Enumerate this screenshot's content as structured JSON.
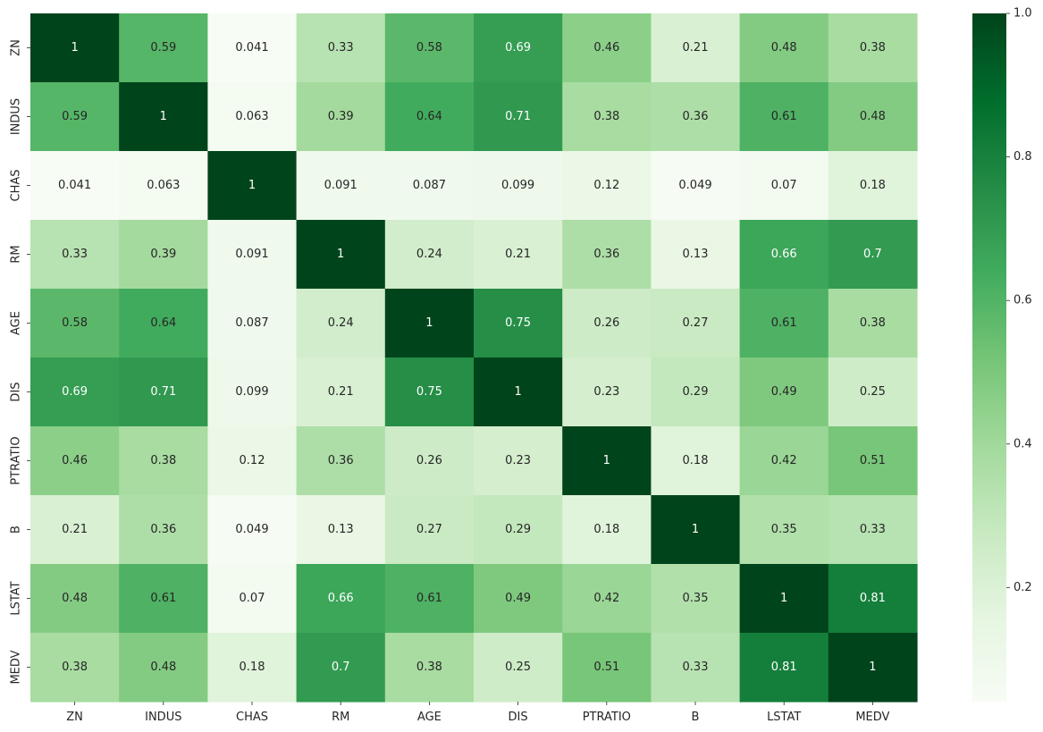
{
  "chart_data": {
    "type": "heatmap",
    "title": "",
    "xlabel": "",
    "ylabel": "",
    "x_categories": [
      "ZN",
      "INDUS",
      "CHAS",
      "RM",
      "AGE",
      "DIS",
      "PTRATIO",
      "B",
      "LSTAT",
      "MEDV"
    ],
    "y_categories": [
      "ZN",
      "INDUS",
      "CHAS",
      "RM",
      "AGE",
      "DIS",
      "PTRATIO",
      "B",
      "LSTAT",
      "MEDV"
    ],
    "values": [
      [
        1,
        0.59,
        0.041,
        0.33,
        0.58,
        0.69,
        0.46,
        0.21,
        0.48,
        0.38
      ],
      [
        0.59,
        1,
        0.063,
        0.39,
        0.64,
        0.71,
        0.38,
        0.36,
        0.61,
        0.48
      ],
      [
        0.041,
        0.063,
        1,
        0.091,
        0.087,
        0.099,
        0.12,
        0.049,
        0.07,
        0.18
      ],
      [
        0.33,
        0.39,
        0.091,
        1,
        0.24,
        0.21,
        0.36,
        0.13,
        0.66,
        0.7
      ],
      [
        0.58,
        0.64,
        0.087,
        0.24,
        1,
        0.75,
        0.26,
        0.27,
        0.61,
        0.38
      ],
      [
        0.69,
        0.71,
        0.099,
        0.21,
        0.75,
        1,
        0.23,
        0.29,
        0.49,
        0.25
      ],
      [
        0.46,
        0.38,
        0.12,
        0.36,
        0.26,
        0.23,
        1,
        0.18,
        0.42,
        0.51
      ],
      [
        0.21,
        0.36,
        0.049,
        0.13,
        0.27,
        0.29,
        0.18,
        1,
        0.35,
        0.33
      ],
      [
        0.48,
        0.61,
        0.07,
        0.66,
        0.61,
        0.49,
        0.42,
        0.35,
        1,
        0.81
      ],
      [
        0.38,
        0.48,
        0.18,
        0.7,
        0.38,
        0.25,
        0.51,
        0.33,
        0.81,
        1
      ]
    ],
    "annotated": true,
    "colormap": "Greens",
    "colorbar": {
      "range": [
        0.041,
        1.0
      ],
      "ticks": [
        0.2,
        0.4,
        0.6,
        0.8,
        1.0
      ],
      "tick_labels": [
        "0.2",
        "0.4",
        "0.6",
        "0.8",
        "1.0"
      ],
      "placement": "right"
    },
    "grid": false
  }
}
